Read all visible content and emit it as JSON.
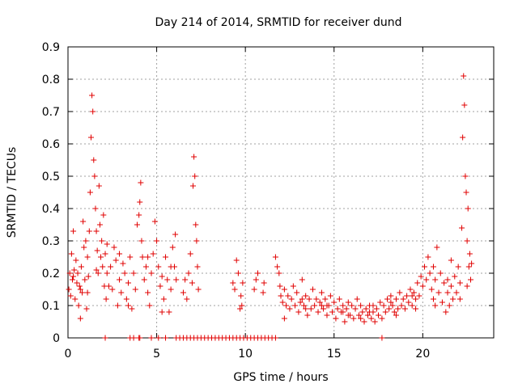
{
  "chart_data": {
    "type": "scatter",
    "title": "Day 214 of 2014, SRMTID for receiver dund",
    "xlabel": "GPS time / hours",
    "ylabel": "SRMTID / TECUs",
    "xlim": [
      0,
      24
    ],
    "ylim": [
      0,
      0.9
    ],
    "xticks": [
      0,
      5,
      10,
      15,
      20
    ],
    "xtick_labels": [
      "0",
      "5",
      "10",
      "15",
      "20"
    ],
    "yticks": [
      0,
      0.1,
      0.2,
      0.3,
      0.4,
      0.5,
      0.6,
      0.7,
      0.8,
      0.9
    ],
    "ytick_labels": [
      "0",
      "0.1",
      "0.2",
      "0.3",
      "0.4",
      "0.5",
      "0.6",
      "0.7",
      "0.8",
      "0.9"
    ],
    "grid": true,
    "marker": "+",
    "series": [
      {
        "name": "SRMTID",
        "color": "#e00000",
        "points": [
          [
            0.05,
            0.15
          ],
          [
            0.1,
            0.2
          ],
          [
            0.15,
            0.13
          ],
          [
            0.2,
            0.26
          ],
          [
            0.25,
            0.18
          ],
          [
            0.3,
            0.33
          ],
          [
            0.35,
            0.21
          ],
          [
            0.4,
            0.12
          ],
          [
            0.45,
            0.24
          ],
          [
            0.5,
            0.17
          ],
          [
            0.55,
            0.2
          ],
          [
            0.6,
            0.1
          ],
          [
            0.65,
            0.16
          ],
          [
            0.7,
            0.06
          ],
          [
            0.75,
            0.22
          ],
          [
            0.8,
            0.14
          ],
          [
            0.85,
            0.36
          ],
          [
            0.9,
            0.28
          ],
          [
            0.95,
            0.18
          ],
          [
            1.0,
            0.3
          ],
          [
            1.05,
            0.09
          ],
          [
            1.1,
            0.25
          ],
          [
            1.15,
            0.19
          ],
          [
            1.2,
            0.33
          ],
          [
            1.25,
            0.45
          ],
          [
            1.3,
            0.62
          ],
          [
            1.35,
            0.75
          ],
          [
            1.4,
            0.7
          ],
          [
            1.45,
            0.55
          ],
          [
            1.5,
            0.5
          ],
          [
            1.55,
            0.4
          ],
          [
            1.6,
            0.33
          ],
          [
            1.65,
            0.27
          ],
          [
            1.7,
            0.2
          ],
          [
            1.75,
            0.47
          ],
          [
            1.8,
            0.35
          ],
          [
            1.85,
            0.25
          ],
          [
            1.9,
            0.3
          ],
          [
            1.95,
            0.22
          ],
          [
            2.0,
            0.38
          ],
          [
            2.05,
            0.16
          ],
          [
            2.1,
            0.26
          ],
          [
            2.15,
            0.12
          ],
          [
            2.2,
            0.2
          ],
          [
            2.3,
            0.16
          ],
          [
            2.4,
            0.22
          ],
          [
            2.5,
            0.15
          ],
          [
            2.6,
            0.28
          ],
          [
            2.7,
            0.24
          ],
          [
            2.8,
            0.1
          ],
          [
            2.9,
            0.18
          ],
          [
            3.0,
            0.14
          ],
          [
            3.1,
            0.23
          ],
          [
            3.2,
            0.2
          ],
          [
            3.3,
            0.12
          ],
          [
            3.4,
            0.17
          ],
          [
            3.5,
            0.25
          ],
          [
            3.6,
            0.09
          ],
          [
            3.7,
            0.2
          ],
          [
            3.8,
            0.15
          ],
          [
            3.9,
            0.35
          ],
          [
            4.0,
            0.38
          ],
          [
            4.05,
            0.42
          ],
          [
            4.1,
            0.48
          ],
          [
            4.15,
            0.3
          ],
          [
            4.2,
            0.25
          ],
          [
            4.3,
            0.18
          ],
          [
            4.4,
            0.22
          ],
          [
            4.5,
            0.14
          ],
          [
            4.6,
            0.1
          ],
          [
            4.7,
            0.2
          ],
          [
            4.8,
            0.26
          ],
          [
            4.9,
            0.36
          ],
          [
            5.0,
            0.3
          ],
          [
            5.1,
            0.22
          ],
          [
            5.2,
            0.16
          ],
          [
            5.3,
            0.19
          ],
          [
            5.4,
            0.12
          ],
          [
            5.5,
            0.25
          ],
          [
            5.6,
            0.18
          ],
          [
            5.7,
            0.08
          ],
          [
            5.8,
            0.15
          ],
          [
            5.9,
            0.28
          ],
          [
            6.0,
            0.22
          ],
          [
            6.05,
            0.32
          ],
          [
            6.1,
            0.18
          ],
          [
            6.5,
            0.14
          ],
          [
            6.6,
            0.18
          ],
          [
            6.7,
            0.12
          ],
          [
            6.8,
            0.2
          ],
          [
            6.9,
            0.26
          ],
          [
            7.0,
            0.17
          ],
          [
            7.05,
            0.47
          ],
          [
            7.1,
            0.56
          ],
          [
            7.15,
            0.5
          ],
          [
            7.2,
            0.35
          ],
          [
            7.25,
            0.3
          ],
          [
            7.3,
            0.22
          ],
          [
            7.35,
            0.15
          ],
          [
            9.3,
            0.17
          ],
          [
            9.4,
            0.15
          ],
          [
            9.5,
            0.24
          ],
          [
            9.6,
            0.2
          ],
          [
            9.7,
            0.09
          ],
          [
            9.75,
            0.13
          ],
          [
            9.8,
            0.1
          ],
          [
            9.85,
            0.17
          ],
          [
            10.5,
            0.15
          ],
          [
            10.6,
            0.18
          ],
          [
            10.7,
            0.2
          ],
          [
            11.0,
            0.14
          ],
          [
            11.05,
            0.17
          ],
          [
            11.7,
            0.25
          ],
          [
            11.8,
            0.22
          ],
          [
            11.9,
            0.2
          ],
          [
            11.95,
            0.16
          ],
          [
            12.0,
            0.13
          ],
          [
            12.1,
            0.11
          ],
          [
            12.2,
            0.15
          ],
          [
            12.3,
            0.1
          ],
          [
            12.4,
            0.13
          ],
          [
            12.5,
            0.09
          ],
          [
            12.6,
            0.12
          ],
          [
            12.7,
            0.16
          ],
          [
            12.8,
            0.1
          ],
          [
            12.9,
            0.14
          ],
          [
            13.0,
            0.08
          ],
          [
            13.1,
            0.11
          ],
          [
            13.2,
            0.18
          ],
          [
            13.3,
            0.1
          ],
          [
            13.4,
            0.13
          ],
          [
            13.5,
            0.07
          ],
          [
            13.6,
            0.12
          ],
          [
            13.7,
            0.09
          ],
          [
            13.8,
            0.15
          ],
          [
            13.9,
            0.1
          ],
          [
            14.0,
            0.12
          ],
          [
            14.1,
            0.08
          ],
          [
            14.2,
            0.11
          ],
          [
            14.3,
            0.14
          ],
          [
            14.4,
            0.09
          ],
          [
            14.5,
            0.12
          ],
          [
            14.6,
            0.07
          ],
          [
            14.7,
            0.1
          ],
          [
            14.8,
            0.13
          ],
          [
            14.9,
            0.08
          ],
          [
            15.0,
            0.11
          ],
          [
            15.1,
            0.06
          ],
          [
            15.2,
            0.09
          ],
          [
            15.3,
            0.12
          ],
          [
            15.4,
            0.08
          ],
          [
            15.5,
            0.1
          ],
          [
            15.6,
            0.05
          ],
          [
            15.7,
            0.09
          ],
          [
            15.8,
            0.11
          ],
          [
            15.9,
            0.07
          ],
          [
            16.0,
            0.1
          ],
          [
            16.1,
            0.06
          ],
          [
            16.2,
            0.09
          ],
          [
            16.3,
            0.12
          ],
          [
            16.4,
            0.07
          ],
          [
            16.5,
            0.1
          ],
          [
            16.6,
            0.08
          ],
          [
            16.7,
            0.05
          ],
          [
            16.8,
            0.09
          ],
          [
            16.9,
            0.07
          ],
          [
            17.0,
            0.1
          ],
          [
            17.1,
            0.06
          ],
          [
            17.2,
            0.08
          ],
          [
            17.3,
            0.05
          ],
          [
            17.4,
            0.09
          ],
          [
            17.5,
            0.07
          ],
          [
            17.6,
            0.11
          ],
          [
            17.7,
            0.06
          ],
          [
            17.8,
            0.1
          ],
          [
            17.9,
            0.08
          ],
          [
            18.0,
            0.12
          ],
          [
            18.1,
            0.09
          ],
          [
            18.2,
            0.13
          ],
          [
            18.3,
            0.1
          ],
          [
            18.4,
            0.08
          ],
          [
            18.5,
            0.12
          ],
          [
            18.6,
            0.09
          ],
          [
            18.7,
            0.14
          ],
          [
            18.8,
            0.1
          ],
          [
            18.9,
            0.12
          ],
          [
            19.0,
            0.09
          ],
          [
            19.1,
            0.13
          ],
          [
            19.2,
            0.11
          ],
          [
            19.3,
            0.15
          ],
          [
            19.4,
            0.1
          ],
          [
            19.5,
            0.14
          ],
          [
            19.6,
            0.12
          ],
          [
            19.7,
            0.17
          ],
          [
            19.8,
            0.13
          ],
          [
            19.9,
            0.19
          ],
          [
            20.0,
            0.16
          ],
          [
            20.1,
            0.22
          ],
          [
            20.2,
            0.18
          ],
          [
            20.3,
            0.25
          ],
          [
            20.4,
            0.2
          ],
          [
            20.5,
            0.15
          ],
          [
            20.6,
            0.22
          ],
          [
            20.7,
            0.18
          ],
          [
            20.8,
            0.28
          ],
          [
            20.9,
            0.14
          ],
          [
            21.0,
            0.2
          ],
          [
            21.1,
            0.11
          ],
          [
            21.2,
            0.17
          ],
          [
            21.3,
            0.08
          ],
          [
            21.4,
            0.14
          ],
          [
            21.5,
            0.1
          ],
          [
            21.6,
            0.16
          ],
          [
            21.7,
            0.12
          ],
          [
            21.8,
            0.19
          ],
          [
            21.9,
            0.14
          ],
          [
            22.0,
            0.22
          ],
          [
            22.1,
            0.17
          ],
          [
            22.2,
            0.34
          ],
          [
            22.25,
            0.62
          ],
          [
            22.3,
            0.81
          ],
          [
            22.35,
            0.72
          ],
          [
            22.4,
            0.5
          ],
          [
            22.45,
            0.45
          ],
          [
            22.5,
            0.3
          ],
          [
            22.55,
            0.4
          ],
          [
            22.6,
            0.22
          ],
          [
            22.65,
            0.26
          ],
          [
            22.7,
            0.18
          ],
          [
            22.75,
            0.23
          ],
          [
            0.3,
            0.19
          ],
          [
            0.7,
            0.15
          ],
          [
            1.1,
            0.14
          ],
          [
            1.6,
            0.21
          ],
          [
            2.2,
            0.29
          ],
          [
            2.9,
            0.26
          ],
          [
            3.4,
            0.1
          ],
          [
            4.5,
            0.25
          ],
          [
            5.3,
            0.08
          ],
          [
            5.8,
            0.22
          ],
          [
            13.2,
            0.12
          ],
          [
            14.3,
            0.1
          ],
          [
            15.5,
            0.08
          ],
          [
            16.5,
            0.06
          ],
          [
            17.2,
            0.1
          ],
          [
            18.5,
            0.07
          ],
          [
            19.6,
            0.09
          ],
          [
            20.7,
            0.1
          ],
          [
            21.6,
            0.24
          ],
          [
            22.1,
            0.12
          ],
          [
            12.2,
            0.06
          ],
          [
            13.4,
            0.09
          ],
          [
            14.6,
            0.1
          ],
          [
            15.8,
            0.07
          ],
          [
            17.0,
            0.08
          ],
          [
            18.2,
            0.11
          ],
          [
            19.4,
            0.13
          ],
          [
            20.6,
            0.12
          ],
          [
            21.4,
            0.18
          ],
          [
            22.5,
            0.16
          ],
          [
            2.1,
            0.0
          ],
          [
            3.5,
            0.0
          ],
          [
            3.7,
            0.0
          ],
          [
            4.0,
            0.0
          ],
          [
            4.05,
            0.0
          ],
          [
            4.7,
            0.0
          ],
          [
            5.1,
            0.0
          ],
          [
            5.5,
            0.0
          ],
          [
            6.1,
            0.0
          ],
          [
            6.3,
            0.0
          ],
          [
            6.5,
            0.0
          ],
          [
            6.7,
            0.0
          ],
          [
            6.9,
            0.0
          ],
          [
            7.1,
            0.0
          ],
          [
            7.3,
            0.0
          ],
          [
            7.5,
            0.0
          ],
          [
            7.7,
            0.0
          ],
          [
            7.9,
            0.0
          ],
          [
            8.1,
            0.0
          ],
          [
            8.3,
            0.0
          ],
          [
            8.5,
            0.0
          ],
          [
            8.7,
            0.0
          ],
          [
            8.9,
            0.0
          ],
          [
            9.1,
            0.0
          ],
          [
            9.3,
            0.0
          ],
          [
            9.5,
            0.0
          ],
          [
            9.7,
            0.0
          ],
          [
            9.9,
            0.0
          ],
          [
            10.1,
            0.0
          ],
          [
            10.3,
            0.0
          ],
          [
            10.5,
            0.0
          ],
          [
            10.7,
            0.0
          ],
          [
            10.9,
            0.0
          ],
          [
            11.1,
            0.0
          ],
          [
            11.3,
            0.0
          ],
          [
            11.5,
            0.0
          ],
          [
            11.7,
            0.0
          ],
          [
            17.7,
            0.0
          ]
        ]
      }
    ]
  }
}
